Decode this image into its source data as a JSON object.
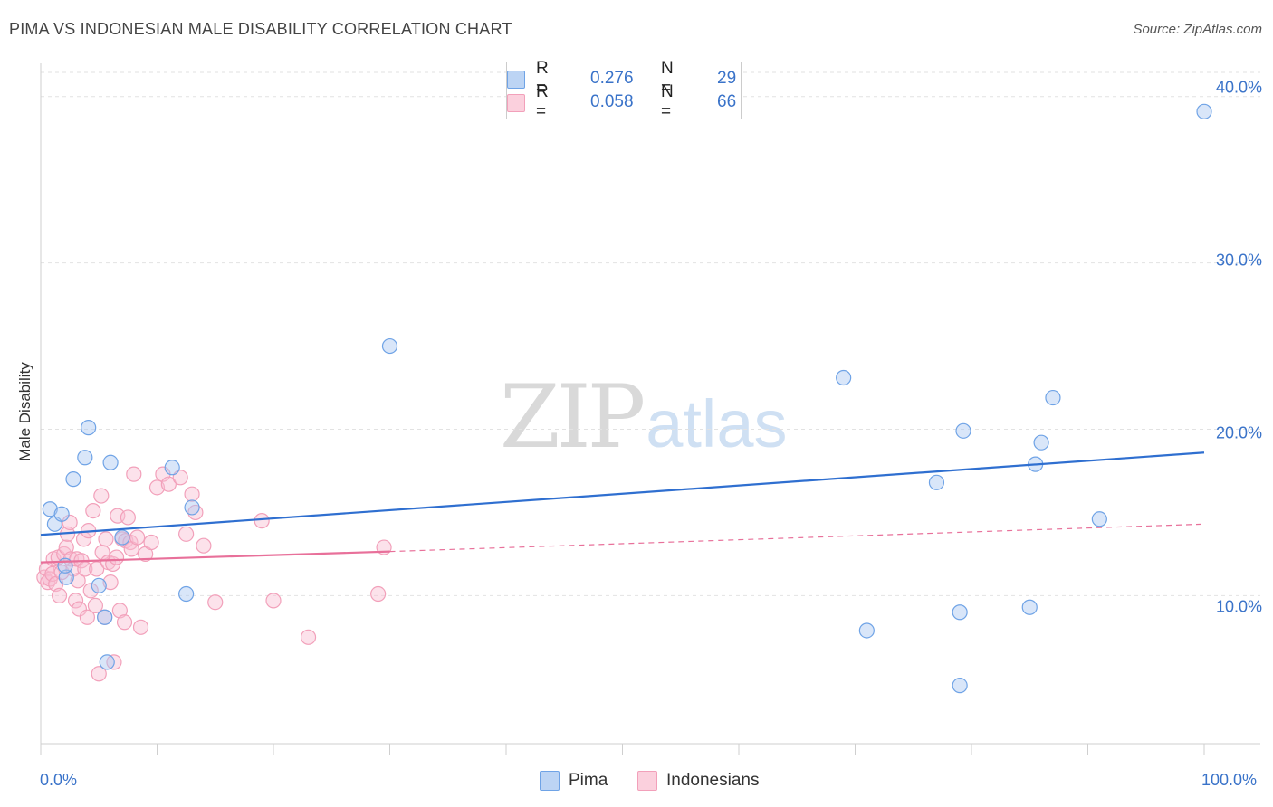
{
  "title": "PIMA VS INDONESIAN MALE DISABILITY CORRELATION CHART",
  "source": "Source: ZipAtlas.com",
  "watermark": {
    "zip": "ZIP",
    "atlas": "atlas"
  },
  "colors": {
    "pima": "#6fa3e6",
    "pima_line": "#2f6fd0",
    "indonesians": "#f2a0ba",
    "indonesians_line": "#e8709a",
    "tick_text": "#3a73c9"
  },
  "legend": {
    "rows": [
      {
        "r_label": "R =",
        "r_value": "0.276",
        "n_label": "N =",
        "n_value": "29"
      },
      {
        "r_label": "R =",
        "r_value": "0.058",
        "n_label": "N =",
        "n_value": "66"
      }
    ]
  },
  "bottom_legend": [
    "Pima",
    "Indonesians"
  ],
  "chart_data": {
    "type": "scatter",
    "title": "PIMA VS INDONESIAN MALE DISABILITY CORRELATION CHART",
    "xlabel": "",
    "ylabel": "Male Disability",
    "xlim": [
      0,
      100
    ],
    "ylim": [
      1.1,
      42.0
    ],
    "x_tick_labels": [
      "0.0%",
      "100.0%"
    ],
    "y_ticks": [
      10,
      20,
      30,
      40
    ],
    "y_tick_labels": [
      "10.0%",
      "20.0%",
      "30.0%",
      "40.0%"
    ],
    "grid": "horizontal dashed",
    "legend_placement": "top-center",
    "series": [
      {
        "name": "Pima",
        "x": [
          0.8,
          1.2,
          1.8,
          2.2,
          2.8,
          3.8,
          4.1,
          5.0,
          5.5,
          5.7,
          6.0,
          7.0,
          11.3,
          12.5,
          13.0,
          30.0,
          69.0,
          71.0,
          77.0,
          79.0,
          79.0,
          79.3,
          85.0,
          85.5,
          86.0,
          87.0,
          91.0,
          100.0,
          2.1
        ],
        "y": [
          15.2,
          14.3,
          14.9,
          11.1,
          17.0,
          18.3,
          20.1,
          10.6,
          8.7,
          6.0,
          18.0,
          13.5,
          17.7,
          10.1,
          15.3,
          25.0,
          23.1,
          7.9,
          16.8,
          4.6,
          9.0,
          19.9,
          9.3,
          17.9,
          19.2,
          21.9,
          14.6,
          39.1,
          11.8
        ]
      },
      {
        "name": "Indonesians",
        "x": [
          0.3,
          0.5,
          0.6,
          0.8,
          1.0,
          1.1,
          1.3,
          1.5,
          1.6,
          1.8,
          2.0,
          2.2,
          2.3,
          2.5,
          2.6,
          2.8,
          3.0,
          3.1,
          3.2,
          3.3,
          3.5,
          3.7,
          3.8,
          4.0,
          4.1,
          4.3,
          4.5,
          4.7,
          4.8,
          5.0,
          5.2,
          5.3,
          5.5,
          5.6,
          5.8,
          6.0,
          6.2,
          6.3,
          6.5,
          6.6,
          6.8,
          7.0,
          7.2,
          7.3,
          7.5,
          7.7,
          7.8,
          8.0,
          8.3,
          8.6,
          9.0,
          9.5,
          10.0,
          10.5,
          11.0,
          12.0,
          12.5,
          13.0,
          13.3,
          14.0,
          15.0,
          19.0,
          20.0,
          23.0,
          29.0,
          29.5
        ],
        "y": [
          11.1,
          11.6,
          10.8,
          11.0,
          11.3,
          12.2,
          10.7,
          12.3,
          10.0,
          11.4,
          12.5,
          12.9,
          13.7,
          14.4,
          12.2,
          11.6,
          9.7,
          12.2,
          10.9,
          9.2,
          12.1,
          13.4,
          11.6,
          8.7,
          13.9,
          10.3,
          15.1,
          9.4,
          11.6,
          5.3,
          16.0,
          12.6,
          8.7,
          13.4,
          12.0,
          10.8,
          11.9,
          6.0,
          12.3,
          14.8,
          9.1,
          13.4,
          8.4,
          13.3,
          14.7,
          13.2,
          12.8,
          17.3,
          13.5,
          8.1,
          12.5,
          13.2,
          16.5,
          17.3,
          16.7,
          17.1,
          13.7,
          16.1,
          15.0,
          13.0,
          9.6,
          14.5,
          9.7,
          7.5,
          10.1,
          12.9
        ]
      }
    ],
    "trend_lines": [
      {
        "name": "Pima",
        "x": [
          0,
          100
        ],
        "y": [
          13.65,
          18.6
        ],
        "style": "solid"
      },
      {
        "name": "Indonesians",
        "x": [
          0,
          30
        ],
        "y": [
          12.0,
          12.65
        ],
        "style": "solid"
      },
      {
        "name": "Indonesians",
        "x": [
          30,
          100
        ],
        "y": [
          12.65,
          14.3
        ],
        "style": "dashed"
      }
    ]
  }
}
